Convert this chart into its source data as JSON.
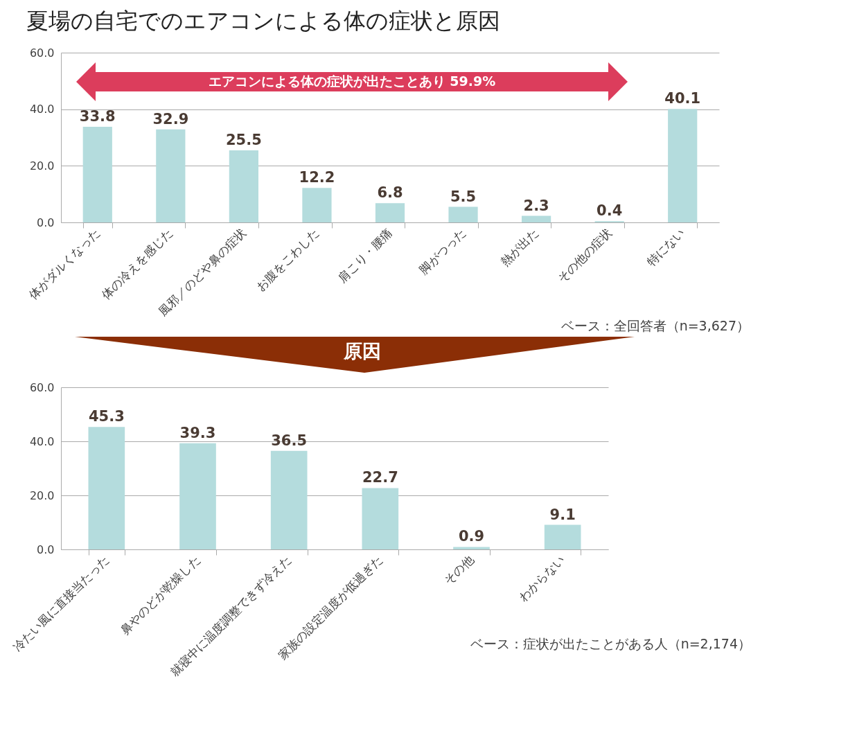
{
  "chart_data": [
    {
      "type": "bar",
      "title": "夏場の自宅でのエアコンによる体の症状と原因",
      "categories": [
        "体がダルくなった",
        "体の冷えを感じた",
        "風邪／のどや鼻の症状",
        "お腹をこわした",
        "肩こり・腰痛",
        "脚がつった",
        "熱が出た",
        "その他の症状",
        "特にない"
      ],
      "values": [
        33.8,
        32.9,
        25.5,
        12.2,
        6.8,
        5.5,
        2.3,
        0.4,
        40.1
      ],
      "color": "#b4dcdd",
      "ylim": [
        0,
        60
      ],
      "yticks": [
        {
          "value": 0,
          "label": "0.0"
        },
        {
          "value": 20,
          "label": "20.0"
        },
        {
          "value": 40,
          "label": "40.0"
        },
        {
          "value": 60,
          "label": "60.0"
        }
      ],
      "grid": "y",
      "legend": false,
      "data_labels": true,
      "annotations": [
        "エアコンによる体の症状が出たことあり  59.9%",
        "ベース：全回答者（n=3,627）"
      ]
    },
    {
      "type": "bar",
      "categories": [
        "冷たい風に直接当たった",
        "鼻やのどが乾燥した",
        "就寝中に温度調整できず冷えた",
        "家族の設定温度が低過ぎた",
        "その他",
        "わからない"
      ],
      "values": [
        45.3,
        39.3,
        36.5,
        22.7,
        0.9,
        9.1
      ],
      "color": "#b4dcdd",
      "ylim": [
        0,
        60
      ],
      "yticks": [
        {
          "value": 0,
          "label": "0.0"
        },
        {
          "value": 20,
          "label": "20.0"
        },
        {
          "value": 40,
          "label": "40.0"
        },
        {
          "value": 60,
          "label": "60.0"
        }
      ],
      "grid": "y",
      "legend": false,
      "data_labels": true,
      "annotations": [
        "原因",
        "ベース：症状が出たことがある人（n=2,174）"
      ]
    }
  ]
}
